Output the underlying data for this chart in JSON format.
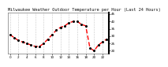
{
  "hours": [
    0,
    1,
    2,
    3,
    4,
    5,
    6,
    7,
    8,
    9,
    10,
    11,
    12,
    13,
    14,
    15,
    16,
    17,
    18,
    19,
    20,
    21,
    22,
    23
  ],
  "temps": [
    31,
    29,
    27,
    26,
    25,
    24,
    23,
    23,
    25,
    28,
    31,
    34,
    36,
    37,
    39,
    40,
    40,
    38,
    37,
    22,
    20,
    24,
    26,
    28
  ],
  "line_color": "#ff0000",
  "dot_color": "#000000",
  "bg_color": "#ffffff",
  "grid_color": "#999999",
  "title": "Milwaukee Weather Outdoor Temperature per Hour (Last 24 Hours)",
  "ylim": [
    18,
    46
  ],
  "ytick_values": [
    20,
    25,
    30,
    35,
    40,
    45
  ],
  "ytick_labels": [
    "20",
    "25",
    "30",
    "35",
    "40",
    "45"
  ],
  "xtick_positions": [
    0,
    2,
    4,
    6,
    8,
    10,
    12,
    14,
    16,
    18,
    20,
    22,
    24
  ],
  "xtick_labels": [
    "0",
    "2",
    "4",
    "6",
    "8",
    "10",
    "12",
    "14",
    "16",
    "18",
    "20",
    "22",
    ""
  ],
  "title_fontsize": 3.8,
  "tick_fontsize": 3.0,
  "line_width": 1.0,
  "dot_size": 1.2,
  "right_bar_color": "#000000"
}
